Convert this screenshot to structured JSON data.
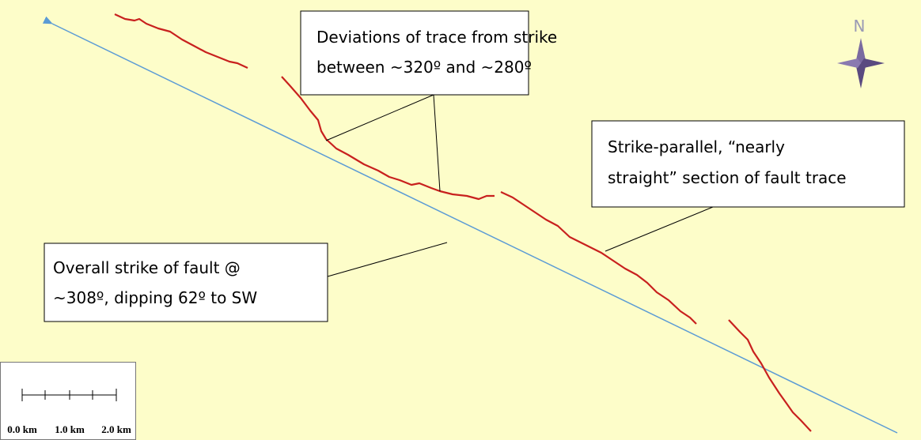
{
  "north_label": "N",
  "annotations": [
    {
      "lines": [
        "Deviations of trace from strike",
        "between ~320º and ~280º"
      ]
    },
    {
      "lines": [
        "Strike-parallel, “nearly",
        "straight” section of fault trace"
      ]
    },
    {
      "lines": [
        "Overall strike of fault @",
        "~308º, dipping 62º to SW"
      ]
    }
  ],
  "scale_bar": {
    "labels": [
      "0.0 km",
      "1.0 km",
      "2.0 km"
    ]
  }
}
